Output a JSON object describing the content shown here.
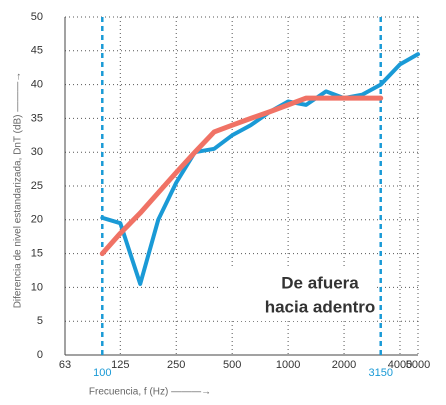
{
  "chart_data": {
    "type": "line",
    "x": [
      100,
      125,
      160,
      200,
      250,
      315,
      400,
      500,
      630,
      800,
      1000,
      1250,
      1600,
      2000,
      2500,
      3150,
      4000,
      5000
    ],
    "series": [
      {
        "color": "#1a9ad6",
        "values": [
          20.3,
          19.5,
          10.5,
          20,
          25.5,
          30,
          30.5,
          32.5,
          34,
          36,
          37.5,
          37,
          39,
          38,
          38.5,
          40,
          43,
          44.5
        ]
      },
      {
        "color": "#f07265",
        "values": [
          15,
          18,
          21,
          24,
          27,
          30,
          33,
          34,
          35,
          36,
          37,
          38,
          38,
          38,
          38,
          38,
          null,
          null
        ]
      }
    ],
    "xscale": "log",
    "xlim": [
      63,
      5000
    ],
    "xticks": [
      63,
      125,
      250,
      500,
      1000,
      2000,
      4000,
      5000
    ],
    "ylim": [
      0,
      50
    ],
    "yticks": [
      0,
      5,
      10,
      15,
      20,
      25,
      30,
      35,
      40,
      45,
      50
    ],
    "grid": true,
    "markers": {
      "color": "#1a9ad6",
      "x": [
        100,
        3150
      ]
    },
    "xlabel": "Frecuencia, f (Hz) ———→",
    "ylabel": "Diferencia de nivel estandarizada, DnT (dB) ———→",
    "annotation": [
      "De afuera",
      "hacia adentro"
    ]
  }
}
